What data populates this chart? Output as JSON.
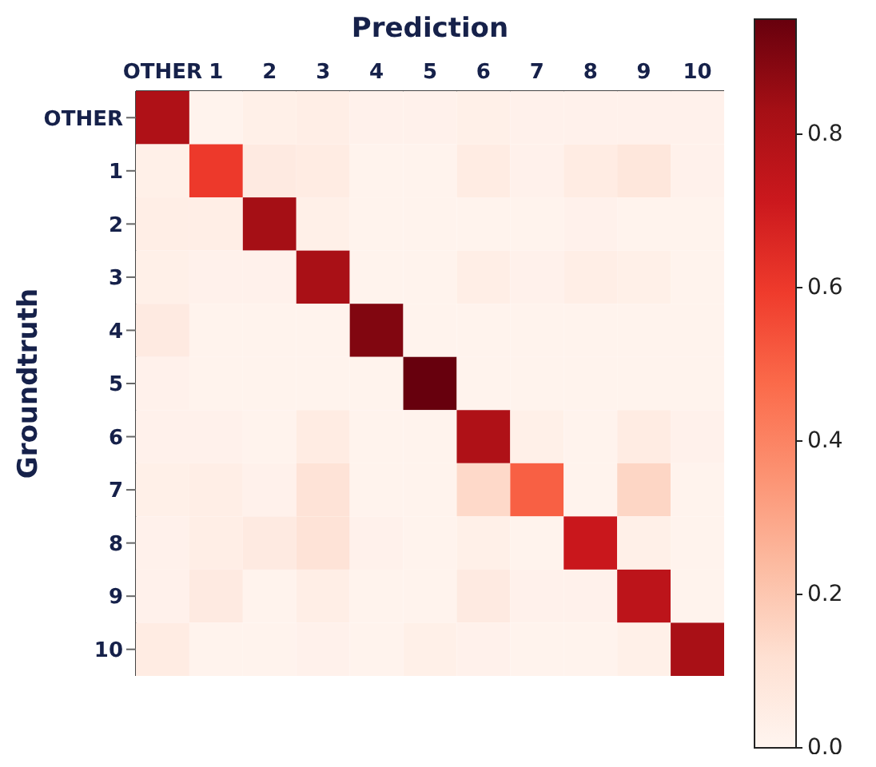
{
  "chart_data": {
    "type": "heatmap",
    "xlabel": "Prediction",
    "ylabel": "Groundtruth",
    "categories": [
      "OTHER",
      "1",
      "2",
      "3",
      "4",
      "5",
      "6",
      "7",
      "8",
      "9",
      "10"
    ],
    "y_categories": [
      "OTHER",
      "1",
      "2",
      "3",
      "4",
      "5",
      "6",
      "7",
      "8",
      "9",
      "10"
    ],
    "cells": [
      [
        0.8,
        0.01,
        0.03,
        0.04,
        0.02,
        0.02,
        0.03,
        0.02,
        0.02,
        0.02,
        0.02
      ],
      [
        0.03,
        0.6,
        0.06,
        0.05,
        0.01,
        0.01,
        0.05,
        0.02,
        0.05,
        0.08,
        0.02
      ],
      [
        0.04,
        0.04,
        0.83,
        0.03,
        0.01,
        0.01,
        0.01,
        0.01,
        0.02,
        0.01,
        0.01
      ],
      [
        0.03,
        0.02,
        0.02,
        0.82,
        0.01,
        0.01,
        0.04,
        0.02,
        0.04,
        0.03,
        0.01
      ],
      [
        0.06,
        0.01,
        0.01,
        0.01,
        0.9,
        0.01,
        0.01,
        0.01,
        0.01,
        0.01,
        0.01
      ],
      [
        0.02,
        0.01,
        0.01,
        0.01,
        0.01,
        0.95,
        0.01,
        0.01,
        0.01,
        0.01,
        0.01
      ],
      [
        0.02,
        0.02,
        0.01,
        0.05,
        0.01,
        0.01,
        0.8,
        0.03,
        0.01,
        0.05,
        0.02
      ],
      [
        0.03,
        0.04,
        0.02,
        0.1,
        0.01,
        0.01,
        0.14,
        0.5,
        0.01,
        0.15,
        0.01
      ],
      [
        0.02,
        0.04,
        0.06,
        0.1,
        0.02,
        0.01,
        0.03,
        0.01,
        0.72,
        0.03,
        0.01
      ],
      [
        0.02,
        0.06,
        0.01,
        0.04,
        0.01,
        0.01,
        0.06,
        0.02,
        0.02,
        0.76,
        0.01
      ],
      [
        0.05,
        0.01,
        0.01,
        0.02,
        0.01,
        0.03,
        0.02,
        0.01,
        0.01,
        0.03,
        0.82
      ]
    ],
    "clim": [
      0,
      0.95
    ],
    "cticks": [
      {
        "value": 0,
        "label": "0.0"
      },
      {
        "value": 0.2,
        "label": "0.2"
      },
      {
        "value": 0.4,
        "label": "0.4"
      },
      {
        "value": 0.6,
        "label": "0.6"
      },
      {
        "value": 0.8,
        "label": "0.8"
      }
    ]
  }
}
